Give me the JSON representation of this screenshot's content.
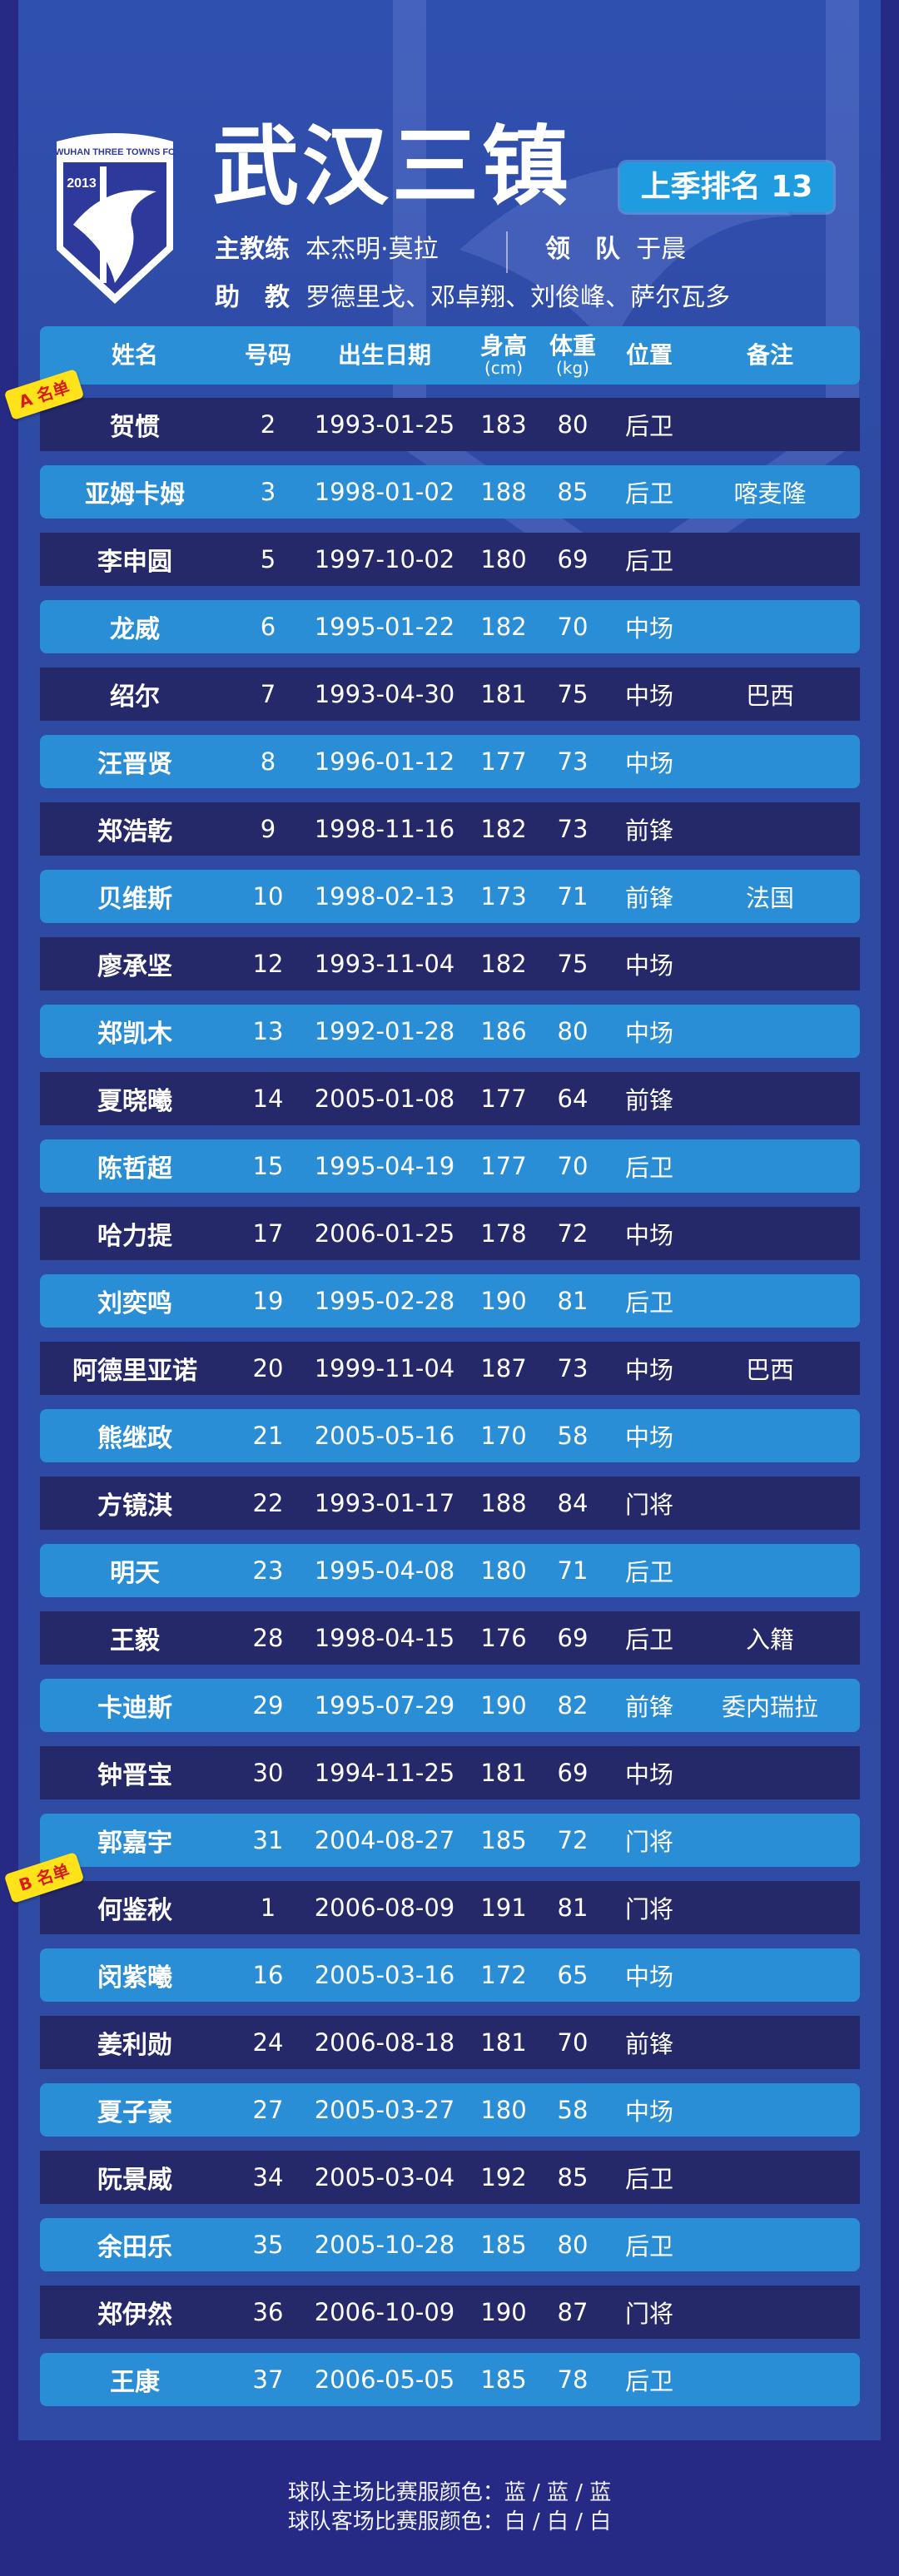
{
  "header": {
    "title": "武汉三镇",
    "badge": "上季排名 13",
    "logo_text": "WUHAN THREE TOWNS FC",
    "logo_year": "2013",
    "head_coach_label": "主教练",
    "head_coach": "本杰明·莫拉",
    "leader_label": "领　队",
    "leader": "于晨",
    "assistant_label": "助　教",
    "assistants": "罗德里戈、邓卓翔、刘俊峰、萨尔瓦多"
  },
  "table": {
    "columns": [
      "姓名",
      "号码",
      "出生日期",
      "身高",
      "体重",
      "位置",
      "备注"
    ],
    "units": [
      "",
      "",
      "",
      "(cm)",
      "(kg)",
      "",
      ""
    ],
    "group_a": "A 名单",
    "group_b": "B 名单",
    "rows": [
      [
        "贺惯",
        "2",
        "1993-01-25",
        "183",
        "80",
        "后卫",
        ""
      ],
      [
        "亚姆卡姆",
        "3",
        "1998-01-02",
        "188",
        "85",
        "后卫",
        "喀麦隆"
      ],
      [
        "李申圆",
        "5",
        "1997-10-02",
        "180",
        "69",
        "后卫",
        ""
      ],
      [
        "龙威",
        "6",
        "1995-01-22",
        "182",
        "70",
        "中场",
        ""
      ],
      [
        "绍尔",
        "7",
        "1993-04-30",
        "181",
        "75",
        "中场",
        "巴西"
      ],
      [
        "汪晋贤",
        "8",
        "1996-01-12",
        "177",
        "73",
        "中场",
        ""
      ],
      [
        "郑浩乾",
        "9",
        "1998-11-16",
        "182",
        "73",
        "前锋",
        ""
      ],
      [
        "贝维斯",
        "10",
        "1998-02-13",
        "173",
        "71",
        "前锋",
        "法国"
      ],
      [
        "廖承坚",
        "12",
        "1993-11-04",
        "182",
        "75",
        "中场",
        ""
      ],
      [
        "郑凯木",
        "13",
        "1992-01-28",
        "186",
        "80",
        "中场",
        ""
      ],
      [
        "夏晓曦",
        "14",
        "2005-01-08",
        "177",
        "64",
        "前锋",
        ""
      ],
      [
        "陈哲超",
        "15",
        "1995-04-19",
        "177",
        "70",
        "后卫",
        ""
      ],
      [
        "哈力提",
        "17",
        "2006-01-25",
        "178",
        "72",
        "中场",
        ""
      ],
      [
        "刘奕鸣",
        "19",
        "1995-02-28",
        "190",
        "81",
        "后卫",
        ""
      ],
      [
        "阿德里亚诺",
        "20",
        "1999-11-04",
        "187",
        "73",
        "中场",
        "巴西"
      ],
      [
        "熊继政",
        "21",
        "2005-05-16",
        "170",
        "58",
        "中场",
        ""
      ],
      [
        "方镜淇",
        "22",
        "1993-01-17",
        "188",
        "84",
        "门将",
        ""
      ],
      [
        "明天",
        "23",
        "1995-04-08",
        "180",
        "71",
        "后卫",
        ""
      ],
      [
        "王毅",
        "28",
        "1998-04-15",
        "176",
        "69",
        "后卫",
        "入籍"
      ],
      [
        "卡迪斯",
        "29",
        "1995-07-29",
        "190",
        "82",
        "前锋",
        "委内瑞拉"
      ],
      [
        "钟晋宝",
        "30",
        "1994-11-25",
        "181",
        "69",
        "中场",
        ""
      ],
      [
        "郭嘉宇",
        "31",
        "2004-08-27",
        "185",
        "72",
        "门将",
        ""
      ],
      [
        "何鉴秋",
        "1",
        "2006-08-09",
        "191",
        "81",
        "门将",
        ""
      ],
      [
        "闵紫曦",
        "16",
        "2005-03-16",
        "172",
        "65",
        "中场",
        ""
      ],
      [
        "姜利勋",
        "24",
        "2006-08-18",
        "181",
        "70",
        "前锋",
        ""
      ],
      [
        "夏子豪",
        "27",
        "2005-03-27",
        "180",
        "58",
        "中场",
        ""
      ],
      [
        "阮景威",
        "34",
        "2005-03-04",
        "192",
        "85",
        "后卫",
        ""
      ],
      [
        "余田乐",
        "35",
        "2005-10-28",
        "185",
        "80",
        "后卫",
        ""
      ],
      [
        "郑伊然",
        "36",
        "2006-10-09",
        "190",
        "87",
        "门将",
        ""
      ],
      [
        "王康",
        "37",
        "2006-05-05",
        "185",
        "78",
        "后卫",
        ""
      ]
    ]
  },
  "footer": {
    "home_kit": "球队主场比赛服颜色：蓝 / 蓝 / 蓝",
    "away_kit": "球队客场比赛服颜色：白 / 白 / 白"
  },
  "colors": {
    "background": "#272a85",
    "panel": "#2f4ba4",
    "row_dark": "#25296a",
    "row_light": "#2a8ed6",
    "badge": "#1f9be0",
    "tag": "#ffe21a"
  }
}
